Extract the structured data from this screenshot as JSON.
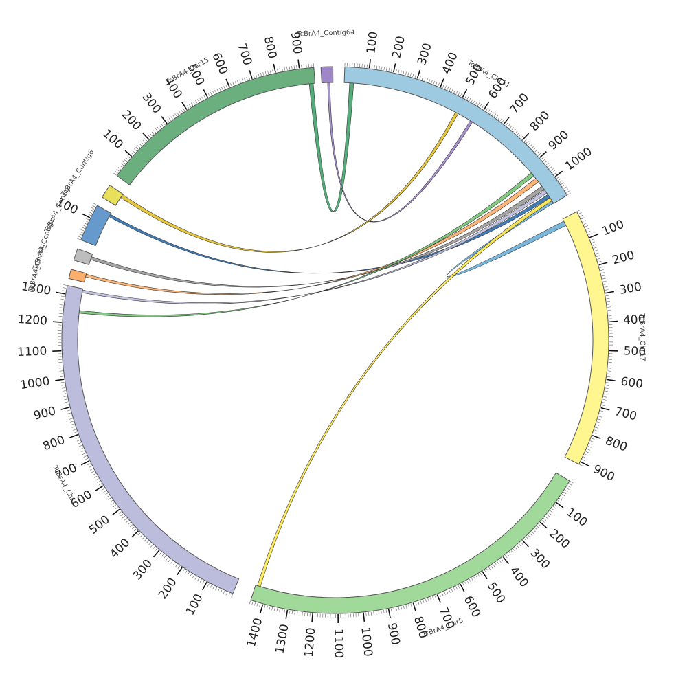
{
  "chart_data": {
    "type": "chord",
    "title": "",
    "segments": [
      {
        "id": "chr11",
        "label": "TcBrA4_Chr11",
        "color": "#9ecae1",
        "start": 2,
        "end": 58,
        "size": 1090,
        "ticks": [
          100,
          200,
          300,
          400,
          500,
          600,
          700,
          800,
          900,
          1000
        ]
      },
      {
        "id": "chr17",
        "label": "TcBrA4_Chr17",
        "color": "#fff68f",
        "start": 62,
        "end": 117,
        "size": 910,
        "ticks": [
          100,
          200,
          300,
          400,
          500,
          600,
          700,
          800,
          900
        ]
      },
      {
        "id": "chr5",
        "label": "TcBrA4_Chr5",
        "color": "#a1d99b",
        "start": 121,
        "end": 198,
        "size": 1450,
        "ticks": [
          100,
          200,
          300,
          400,
          500,
          600,
          700,
          800,
          900,
          1000,
          1100,
          1200,
          1300,
          1400
        ]
      },
      {
        "id": "chr7",
        "label": "TcBrA4_Chr7",
        "color": "#bcbddc",
        "start": 202,
        "end": 281.5,
        "size": 1330,
        "ticks": [
          100,
          200,
          300,
          400,
          500,
          600,
          700,
          800,
          900,
          1000,
          1100,
          1200,
          1300
        ]
      },
      {
        "id": "ctgA",
        "label": "TcBrA4_Contig..",
        "color": "#fdae6b",
        "start": 283,
        "end": 285,
        "size": 40,
        "ticks": []
      },
      {
        "id": "ctgB",
        "label": "TcBrA4_Contig..",
        "color": "#bdbdbd",
        "start": 287,
        "end": 289.5,
        "size": 50,
        "ticks": []
      },
      {
        "id": "ctgC",
        "label": "TcBrA4_Contig..",
        "color": "#6699cc",
        "start": 291.5,
        "end": 299.5,
        "size": 160,
        "ticks": [
          100
        ]
      },
      {
        "id": "ctg6",
        "label": "TcBrA4_Contig6",
        "color": "#e8e05a",
        "start": 301.5,
        "end": 304.5,
        "size": 50,
        "ticks": []
      },
      {
        "id": "chr15",
        "label": "TcBrA4_Chr15",
        "color": "#6baf7f",
        "start": 307,
        "end": 355.5,
        "size": 960,
        "ticks": [
          100,
          200,
          300,
          400,
          500,
          600,
          700,
          800,
          900
        ]
      },
      {
        "id": "ctg64",
        "label": "TcBrA4_Contig64",
        "color": "#9e86c8",
        "start": 357,
        "end": 359.5,
        "size": 40,
        "ticks": []
      }
    ],
    "links": [
      {
        "a": [
          355.1,
          354.2
        ],
        "b": [
          3.2,
          4.1
        ],
        "color": "#41a36b"
      },
      {
        "a": [
          358.3,
          358.8
        ],
        "b": [
          31.6,
          32.2
        ],
        "color": "#9e86c8"
      },
      {
        "a": [
          304.4,
          303.6
        ],
        "b": [
          27.8,
          28.5
        ],
        "color": "#e3c12b"
      },
      {
        "a": [
          299.2,
          298.6
        ],
        "b": [
          55.6,
          56.4
        ],
        "color": "#2f6fb0"
      },
      {
        "a": [
          288.9,
          288.2
        ],
        "b": [
          53.3,
          54.2
        ],
        "color": "#9b9b9b"
      },
      {
        "a": [
          284.8,
          284.2
        ],
        "b": [
          51.1,
          52.1
        ],
        "color": "#fdae6b"
      },
      {
        "a": [
          281.2,
          280.6
        ],
        "b": [
          54.4,
          55.2
        ],
        "color": "#bcbddc"
      },
      {
        "a": [
          276.6,
          276.0
        ],
        "b": [
          49.5,
          50.4
        ],
        "color": "#74c476"
      },
      {
        "a": [
          62.5,
          63.6
        ],
        "b": [
          57.1,
          57.9
        ],
        "color": "#6baed6"
      },
      {
        "a": [
          196.9,
          197.6
        ],
        "b": [
          56.5,
          57.3
        ],
        "color": "#ffe94d"
      }
    ]
  }
}
